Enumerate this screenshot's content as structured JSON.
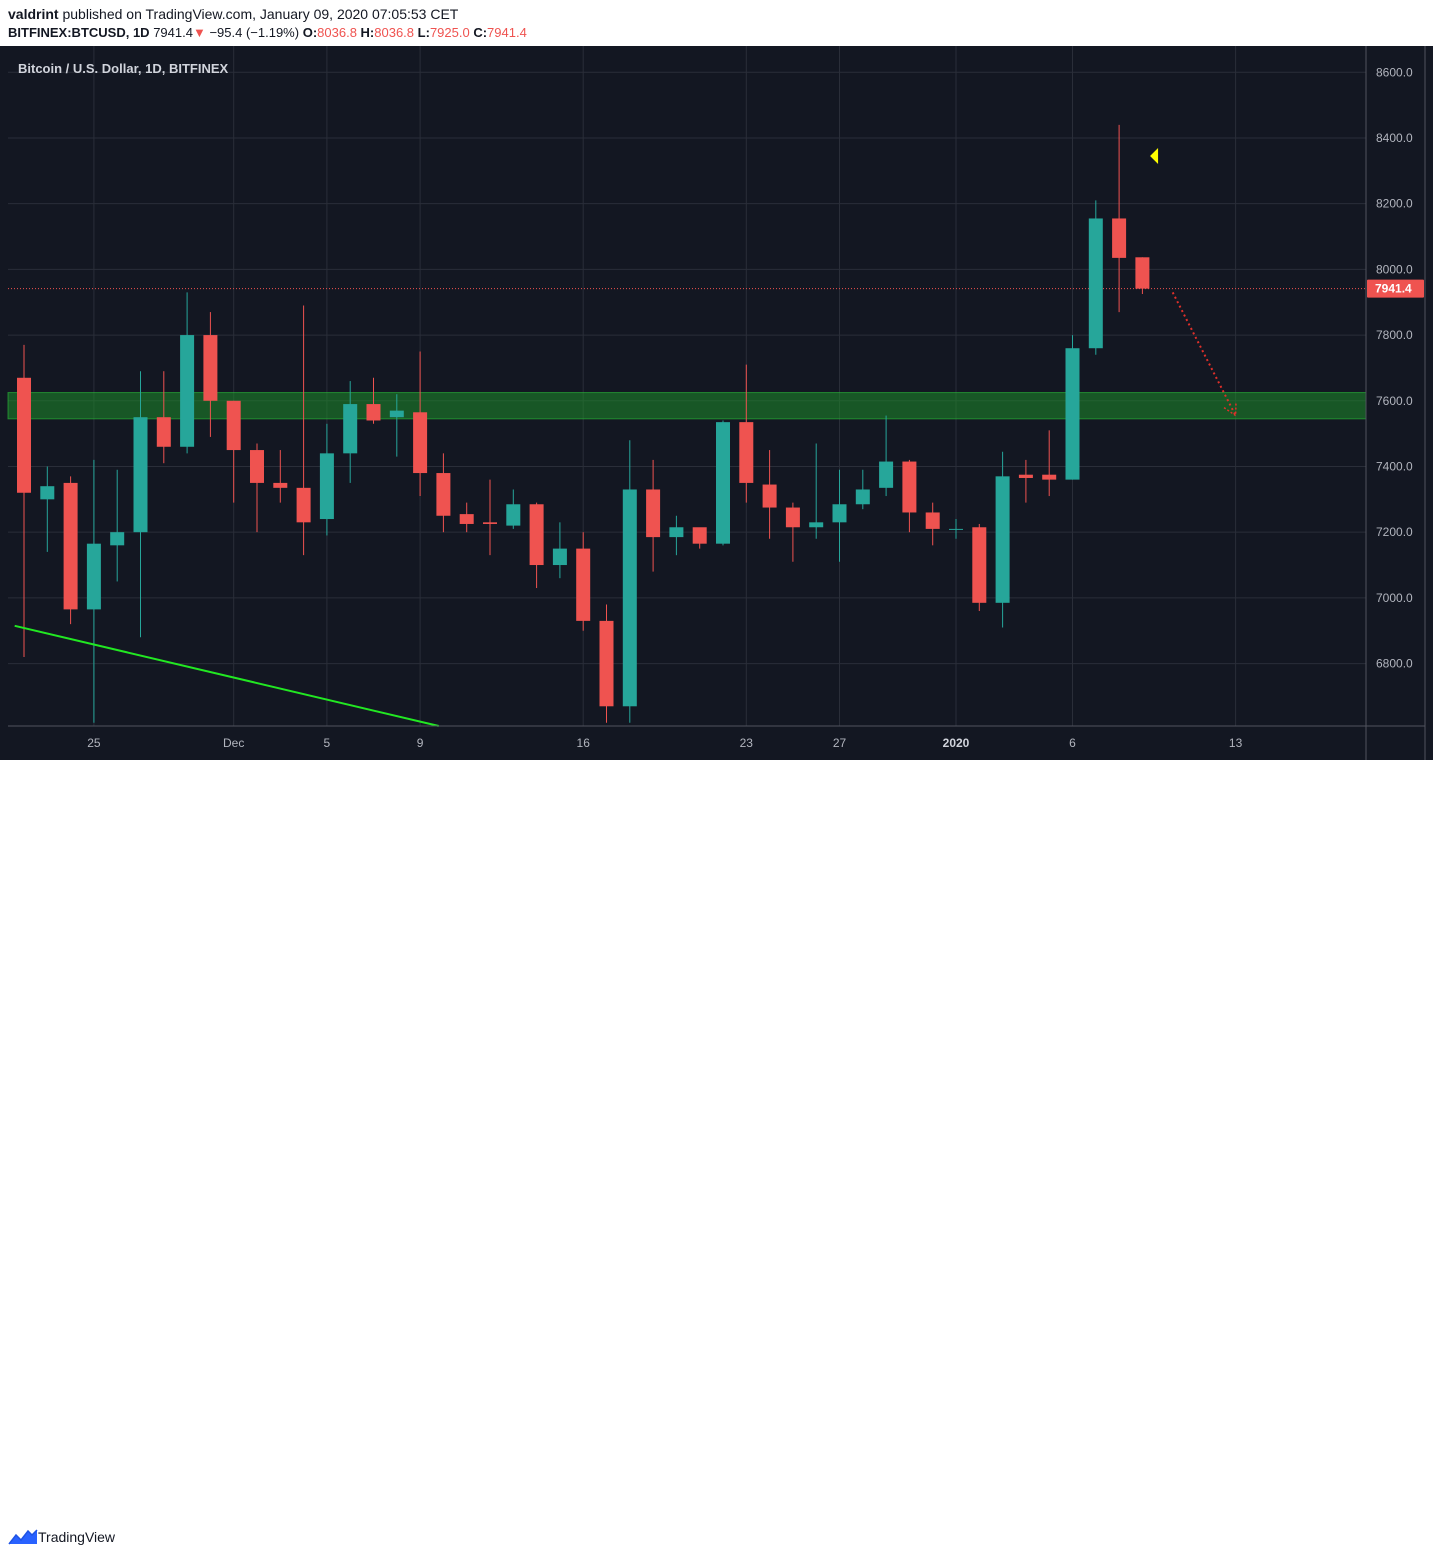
{
  "header": {
    "author": "valdrint",
    "published_text": "published on TradingView.com, January 09, 2020 07:05:53 CET",
    "symbol": "BITFINEX:BTCUSD, 1D",
    "last": "7941.4",
    "change": "−95.4 (−1.19%)",
    "open_label": "O:",
    "open": "8036.8",
    "high_label": "H:",
    "high": "8036.8",
    "low_label": "L:",
    "low": "7925.0",
    "close_label": "C:",
    "close": "7941.4"
  },
  "legend": {
    "title": "Bitcoin / U.S. Dollar, 1D, BITFINEX"
  },
  "footer": {
    "brand": "TradingView"
  },
  "colors": {
    "background": "#131722",
    "grid": "#2a2e39",
    "up": "#26a69a",
    "down": "#ef5350",
    "support_zone": "#1e8c2a",
    "trendline": "#22e822",
    "marker": "#ffff00",
    "axis_text": "#b2b5be"
  },
  "chart_data": {
    "type": "candlestick",
    "ylim": [
      6610,
      8680
    ],
    "yticks": [
      "8600.0",
      "8400.0",
      "8200.0",
      "8000.0",
      "7800.0",
      "7600.0",
      "7400.0",
      "7200.0",
      "7000.0",
      "6800.0"
    ],
    "xticks": [
      {
        "label": "25",
        "bar": 3,
        "bold": false
      },
      {
        "label": "Dec",
        "bar": 9,
        "bold": false
      },
      {
        "label": "5",
        "bar": 13,
        "bold": false
      },
      {
        "label": "9",
        "bar": 17,
        "bold": false
      },
      {
        "label": "16",
        "bar": 24,
        "bold": false
      },
      {
        "label": "23",
        "bar": 31,
        "bold": false
      },
      {
        "label": "27",
        "bar": 35,
        "bold": false
      },
      {
        "label": "2020",
        "bar": 40,
        "bold": true
      },
      {
        "label": "6",
        "bar": 45,
        "bold": false
      },
      {
        "label": "13",
        "bar": 52,
        "bold": false
      }
    ],
    "last_price": 7941.4,
    "last_price_label": "7941.4",
    "candles": [
      {
        "o": 7670,
        "h": 7770,
        "l": 6820,
        "c": 7320
      },
      {
        "o": 7300,
        "h": 7400,
        "l": 7140,
        "c": 7340
      },
      {
        "o": 7350,
        "h": 7370,
        "l": 6920,
        "c": 6965
      },
      {
        "o": 6965,
        "h": 7420,
        "l": 6620,
        "c": 7165
      },
      {
        "o": 7160,
        "h": 7390,
        "l": 7050,
        "c": 7200
      },
      {
        "o": 7200,
        "h": 7690,
        "l": 6880,
        "c": 7550
      },
      {
        "o": 7550,
        "h": 7690,
        "l": 7410,
        "c": 7460
      },
      {
        "o": 7460,
        "h": 7930,
        "l": 7440,
        "c": 7800
      },
      {
        "o": 7800,
        "h": 7870,
        "l": 7490,
        "c": 7600
      },
      {
        "o": 7600,
        "h": 7600,
        "l": 7290,
        "c": 7450
      },
      {
        "o": 7450,
        "h": 7470,
        "l": 7200,
        "c": 7350
      },
      {
        "o": 7350,
        "h": 7450,
        "l": 7290,
        "c": 7335
      },
      {
        "o": 7335,
        "h": 7890,
        "l": 7130,
        "c": 7230
      },
      {
        "o": 7240,
        "h": 7530,
        "l": 7190,
        "c": 7440
      },
      {
        "o": 7440,
        "h": 7660,
        "l": 7350,
        "c": 7590
      },
      {
        "o": 7590,
        "h": 7670,
        "l": 7530,
        "c": 7540
      },
      {
        "o": 7550,
        "h": 7620,
        "l": 7430,
        "c": 7570
      },
      {
        "o": 7565,
        "h": 7750,
        "l": 7310,
        "c": 7380
      },
      {
        "o": 7380,
        "h": 7440,
        "l": 7200,
        "c": 7250
      },
      {
        "o": 7255,
        "h": 7290,
        "l": 7200,
        "c": 7225
      },
      {
        "o": 7230,
        "h": 7360,
        "l": 7130,
        "c": 7225
      },
      {
        "o": 7220,
        "h": 7330,
        "l": 7210,
        "c": 7285
      },
      {
        "o": 7285,
        "h": 7290,
        "l": 7030,
        "c": 7100
      },
      {
        "o": 7100,
        "h": 7230,
        "l": 7060,
        "c": 7150
      },
      {
        "o": 7150,
        "h": 7200,
        "l": 6900,
        "c": 6930
      },
      {
        "o": 6930,
        "h": 6980,
        "l": 6620,
        "c": 6670
      },
      {
        "o": 6670,
        "h": 7480,
        "l": 6620,
        "c": 7330
      },
      {
        "o": 7330,
        "h": 7420,
        "l": 7080,
        "c": 7185
      },
      {
        "o": 7185,
        "h": 7250,
        "l": 7130,
        "c": 7215
      },
      {
        "o": 7215,
        "h": 7210,
        "l": 7150,
        "c": 7165
      },
      {
        "o": 7165,
        "h": 7540,
        "l": 7160,
        "c": 7535
      },
      {
        "o": 7535,
        "h": 7710,
        "l": 7290,
        "c": 7350
      },
      {
        "o": 7345,
        "h": 7450,
        "l": 7180,
        "c": 7275
      },
      {
        "o": 7275,
        "h": 7290,
        "l": 7110,
        "c": 7215
      },
      {
        "o": 7215,
        "h": 7470,
        "l": 7180,
        "c": 7230
      },
      {
        "o": 7230,
        "h": 7390,
        "l": 7110,
        "c": 7285
      },
      {
        "o": 7285,
        "h": 7390,
        "l": 7270,
        "c": 7330
      },
      {
        "o": 7335,
        "h": 7555,
        "l": 7310,
        "c": 7415
      },
      {
        "o": 7415,
        "h": 7420,
        "l": 7200,
        "c": 7260
      },
      {
        "o": 7260,
        "h": 7290,
        "l": 7160,
        "c": 7210
      },
      {
        "o": 7210,
        "h": 7240,
        "l": 7180,
        "c": 7210
      },
      {
        "o": 7215,
        "h": 7225,
        "l": 6960,
        "c": 6985
      },
      {
        "o": 6985,
        "h": 7445,
        "l": 6910,
        "c": 7370
      },
      {
        "o": 7375,
        "h": 7420,
        "l": 7290,
        "c": 7365
      },
      {
        "o": 7375,
        "h": 7510,
        "l": 7310,
        "c": 7360
      },
      {
        "o": 7360,
        "h": 7800,
        "l": 7360,
        "c": 7760
      },
      {
        "o": 7760,
        "h": 8210,
        "l": 7740,
        "c": 8155
      },
      {
        "o": 8155,
        "h": 8440,
        "l": 7870,
        "c": 8035
      },
      {
        "o": 8036.8,
        "h": 8036.8,
        "l": 7925.0,
        "c": 7941.4
      }
    ],
    "support_zone": [
      7545,
      7625
    ],
    "trendline": [
      {
        "bar": -0.4,
        "price": 6915
      },
      {
        "bar": 17.8,
        "price": 6610
      }
    ],
    "projection": [
      {
        "bar": 49.3,
        "price": 7930
      },
      {
        "bar": 52.0,
        "price": 7555
      }
    ],
    "marker": {
      "bar": 48.5,
      "price": 8345
    }
  }
}
